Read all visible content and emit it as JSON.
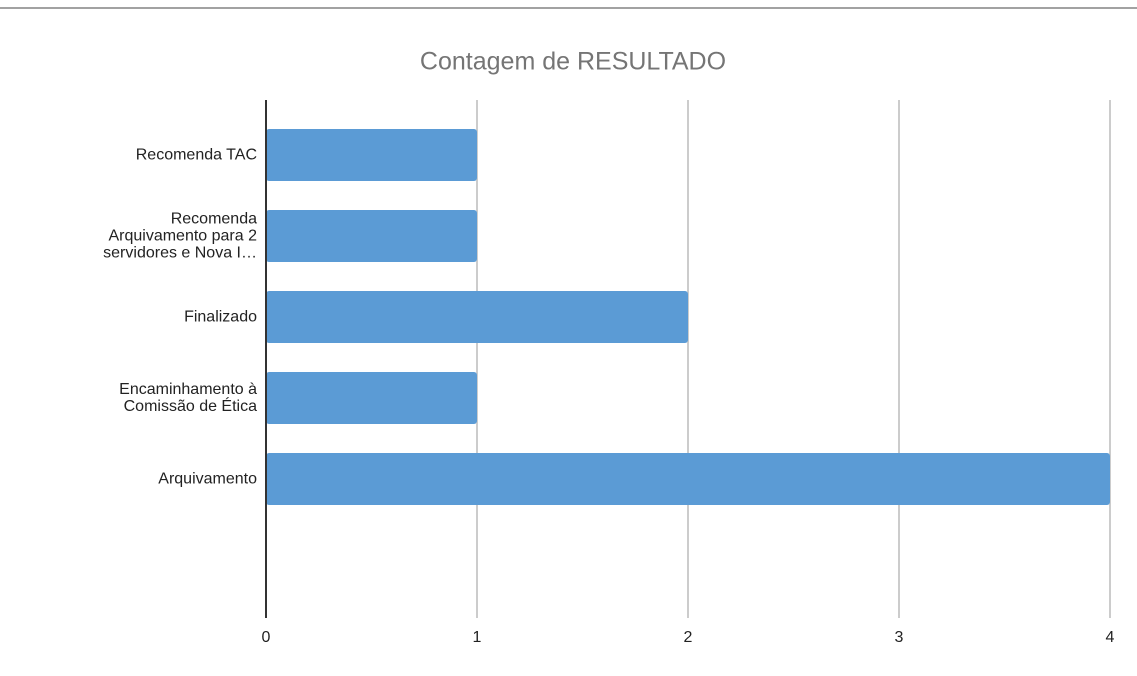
{
  "chart_data": {
    "type": "bar",
    "orientation": "horizontal",
    "title": "Contagem de RESULTADO",
    "categories": [
      "Recomenda TAC",
      "Recomenda\nArquivamento para 2\nservidores e Nova I…",
      "Finalizado",
      "Encaminhamento à\nComissão de Ética",
      "Arquivamento"
    ],
    "values": [
      1,
      1,
      2,
      1,
      4
    ],
    "color": "#5b9bd5",
    "xlim": [
      0,
      4
    ],
    "xticks": [
      0,
      1,
      2,
      3,
      4
    ],
    "grid": true
  }
}
